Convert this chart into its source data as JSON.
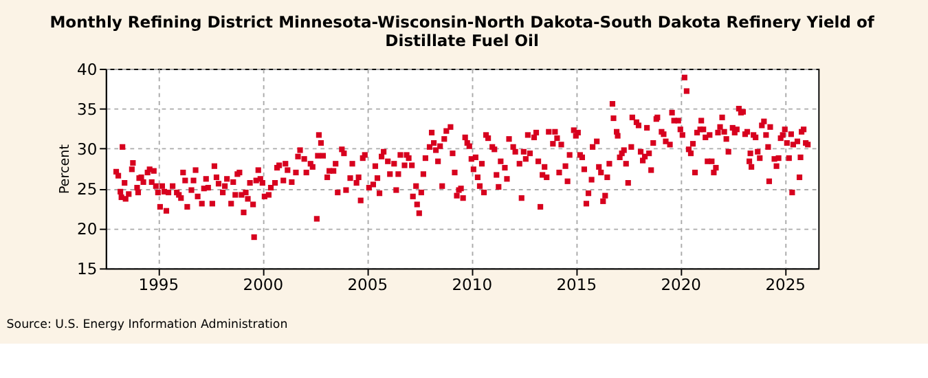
{
  "chart_data": {
    "type": "scatter",
    "title": "Monthly Refining District Minnesota-Wisconsin-North Dakota-South Dakota Refinery Yield of Distillate Fuel Oil",
    "ylabel": "Percent",
    "annotations": [
      "Source: U.S. Energy Information Administration"
    ],
    "x": [
      1993.0,
      1993.1,
      1993.2,
      1993.25,
      1993.3,
      1993.4,
      1993.45,
      1993.6,
      1993.75,
      1993.8,
      1994.0,
      1994.05,
      1994.1,
      1994.2,
      1994.3,
      1994.5,
      1994.6,
      1994.7,
      1994.8,
      1994.9,
      1995.0,
      1995.1,
      1995.2,
      1995.3,
      1995.4,
      1995.5,
      1995.7,
      1995.9,
      1996.0,
      1996.1,
      1996.2,
      1996.3,
      1996.4,
      1996.6,
      1996.7,
      1996.8,
      1996.9,
      1997.1,
      1997.2,
      1997.3,
      1997.4,
      1997.6,
      1997.7,
      1997.8,
      1997.9,
      1998.1,
      1998.2,
      1998.3,
      1998.5,
      1998.6,
      1998.7,
      1998.8,
      1998.9,
      1999.0,
      1999.1,
      1999.2,
      1999.3,
      1999.4,
      1999.55,
      1999.6,
      1999.7,
      1999.8,
      1999.9,
      2000.0,
      2000.1,
      2000.3,
      2000.4,
      2000.6,
      2000.7,
      2000.8,
      2001.0,
      2001.1,
      2001.2,
      2001.4,
      2001.6,
      2001.7,
      2001.8,
      2002.0,
      2002.1,
      2002.3,
      2002.4,
      2002.6,
      2002.65,
      2002.7,
      2002.8,
      2002.9,
      2003.1,
      2003.2,
      2003.4,
      2003.5,
      2003.6,
      2003.8,
      2003.9,
      2004.0,
      2004.2,
      2004.3,
      2004.5,
      2004.6,
      2004.7,
      2004.8,
      2004.9,
      2005.1,
      2005.3,
      2005.4,
      2005.5,
      2005.6,
      2005.7,
      2005.8,
      2006.0,
      2006.1,
      2006.3,
      2006.4,
      2006.5,
      2006.6,
      2006.8,
      2006.9,
      2007.0,
      2007.15,
      2007.2,
      2007.35,
      2007.4,
      2007.5,
      2007.6,
      2007.7,
      2007.8,
      2008.0,
      2008.1,
      2008.2,
      2008.3,
      2008.4,
      2008.5,
      2008.6,
      2008.7,
      2008.8,
      2009.0,
      2009.1,
      2009.2,
      2009.3,
      2009.4,
      2009.5,
      2009.6,
      2009.7,
      2009.8,
      2009.9,
      2010.0,
      2010.1,
      2010.2,
      2010.3,
      2010.4,
      2010.5,
      2010.6,
      2010.7,
      2010.8,
      2011.0,
      2011.1,
      2011.2,
      2011.3,
      2011.4,
      2011.6,
      2011.7,
      2011.8,
      2012.0,
      2012.1,
      2012.3,
      2012.4,
      2012.5,
      2012.6,
      2012.7,
      2012.8,
      2013.0,
      2013.1,
      2013.2,
      2013.3,
      2013.4,
      2013.5,
      2013.6,
      2013.7,
      2013.9,
      2014.0,
      2014.1,
      2014.2,
      2014.3,
      2014.5,
      2014.6,
      2014.7,
      2014.9,
      2015.0,
      2015.1,
      2015.2,
      2015.3,
      2015.4,
      2015.5,
      2015.6,
      2015.75,
      2015.8,
      2016.0,
      2016.1,
      2016.2,
      2016.3,
      2016.4,
      2016.5,
      2016.6,
      2016.75,
      2016.8,
      2016.95,
      2017.0,
      2017.1,
      2017.2,
      2017.3,
      2017.4,
      2017.5,
      2017.65,
      2017.7,
      2017.9,
      2018.0,
      2018.1,
      2018.2,
      2018.3,
      2018.4,
      2018.5,
      2018.6,
      2018.7,
      2018.85,
      2018.9,
      2019.1,
      2019.2,
      2019.3,
      2019.5,
      2019.6,
      2019.7,
      2019.9,
      2020.0,
      2020.1,
      2020.2,
      2020.3,
      2020.4,
      2020.5,
      2020.6,
      2020.7,
      2020.8,
      2020.95,
      2021.0,
      2021.1,
      2021.2,
      2021.3,
      2021.4,
      2021.5,
      2021.6,
      2021.7,
      2021.8,
      2021.9,
      2022.0,
      2022.1,
      2022.2,
      2022.3,
      2022.5,
      2022.6,
      2022.7,
      2022.8,
      2022.9,
      2023.0,
      2023.1,
      2023.2,
      2023.3,
      2023.35,
      2023.4,
      2023.5,
      2023.6,
      2023.7,
      2023.8,
      2023.9,
      2024.0,
      2024.1,
      2024.2,
      2024.25,
      2024.3,
      2024.5,
      2024.6,
      2024.7,
      2024.8,
      2024.9,
      2025.0,
      2025.1,
      2025.2,
      2025.3,
      2025.35,
      2025.4,
      2025.6,
      2025.7,
      2025.75,
      2025.8,
      2025.9,
      2026.0,
      2026.1
    ],
    "values": [
      27.1,
      26.6,
      24.6,
      23.9,
      30.2,
      25.7,
      23.7,
      24.3,
      27.4,
      28.2,
      25.1,
      24.5,
      26.3,
      26.4,
      25.8,
      27.0,
      27.4,
      25.8,
      27.2,
      25.3,
      24.5,
      22.7,
      25.3,
      24.6,
      22.2,
      24.5,
      25.3,
      24.5,
      24.2,
      23.8,
      27.0,
      26.0,
      22.7,
      24.8,
      26.0,
      27.3,
      24.0,
      23.1,
      25.0,
      26.2,
      25.1,
      23.1,
      27.8,
      26.4,
      25.6,
      24.5,
      25.3,
      26.2,
      23.1,
      25.8,
      24.2,
      26.8,
      27.0,
      24.2,
      22.0,
      24.5,
      23.7,
      25.7,
      23.0,
      18.9,
      26.0,
      27.3,
      26.2,
      25.7,
      24.0,
      24.2,
      25.1,
      25.7,
      27.6,
      27.9,
      26.0,
      28.1,
      27.3,
      25.8,
      27.0,
      29.0,
      29.8,
      28.7,
      27.0,
      28.1,
      27.7,
      21.2,
      29.1,
      31.7,
      30.7,
      29.1,
      26.4,
      27.2,
      27.2,
      28.1,
      24.5,
      29.9,
      29.4,
      24.8,
      26.3,
      28.1,
      25.7,
      26.4,
      23.5,
      28.8,
      29.2,
      25.1,
      25.5,
      27.8,
      26.3,
      24.4,
      29.0,
      29.6,
      28.4,
      26.8,
      28.1,
      24.8,
      26.8,
      29.2,
      27.9,
      29.2,
      28.8,
      27.9,
      24.0,
      25.3,
      23.0,
      21.9,
      24.5,
      26.8,
      28.8,
      30.2,
      32.0,
      30.7,
      29.8,
      28.4,
      30.3,
      25.3,
      31.2,
      32.2,
      32.7,
      29.4,
      27.0,
      24.1,
      24.8,
      25.0,
      23.8,
      31.4,
      30.7,
      30.3,
      28.7,
      27.4,
      28.9,
      26.4,
      25.3,
      28.1,
      24.5,
      31.7,
      31.3,
      30.2,
      29.9,
      26.7,
      25.2,
      28.4,
      27.6,
      26.2,
      31.2,
      30.2,
      29.6,
      28.1,
      23.8,
      29.6,
      28.7,
      31.7,
      29.4,
      31.4,
      32.0,
      28.4,
      22.7,
      26.7,
      27.7,
      26.4,
      32.1,
      30.6,
      32.1,
      31.3,
      27.0,
      30.5,
      27.8,
      25.9,
      29.2,
      32.3,
      31.6,
      32.0,
      29.2,
      28.9,
      27.4,
      23.1,
      24.4,
      26.1,
      30.2,
      30.9,
      27.7,
      27.0,
      23.4,
      24.1,
      26.4,
      28.1,
      35.6,
      33.8,
      32.1,
      31.6,
      28.9,
      29.4,
      29.8,
      28.1,
      25.7,
      30.2,
      33.9,
      33.3,
      32.9,
      29.6,
      28.5,
      29.0,
      32.6,
      29.4,
      27.3,
      30.7,
      33.7,
      33.9,
      32.1,
      31.8,
      30.9,
      30.5,
      34.5,
      33.5,
      33.5,
      32.4,
      31.7,
      38.9,
      37.2,
      29.9,
      29.4,
      30.6,
      27.0,
      32.0,
      32.4,
      33.5,
      32.4,
      31.4,
      28.4,
      31.7,
      28.4,
      27.0,
      27.6,
      32.0,
      32.7,
      33.9,
      32.1,
      31.2,
      29.6,
      32.6,
      32.0,
      32.4,
      35.0,
      34.5,
      34.6,
      31.8,
      32.1,
      28.4,
      29.4,
      27.7,
      31.7,
      31.4,
      29.6,
      28.8,
      32.9,
      33.4,
      31.7,
      30.2,
      25.9,
      32.7,
      28.7,
      27.8,
      28.8,
      31.3,
      31.7,
      32.4,
      30.7,
      28.8,
      31.8,
      24.5,
      30.5,
      30.9,
      26.4,
      28.9,
      32.1,
      32.4,
      30.7,
      30.5
    ],
    "color": "#d7001e",
    "marker": "square",
    "xlim": [
      1992.5,
      2026.6
    ],
    "xticks": [
      1995,
      2000,
      2005,
      2010,
      2015,
      2020,
      2025
    ],
    "ylim": [
      15,
      40
    ],
    "yticks": [
      15,
      20,
      25,
      30,
      35,
      40
    ],
    "grid": true
  }
}
